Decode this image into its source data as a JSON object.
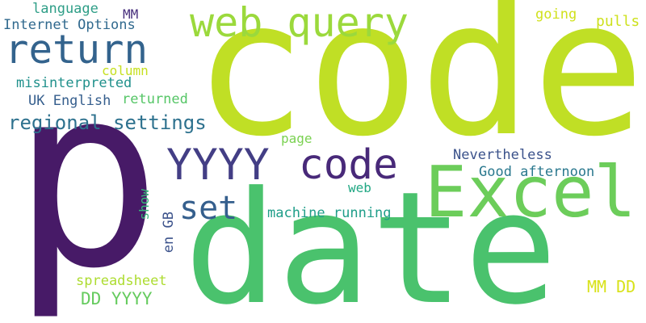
{
  "words": [
    {
      "text": "p",
      "color": "#471a67"
    },
    {
      "text": "code",
      "color": "#c0df25"
    },
    {
      "text": "date",
      "color": "#4ac26d"
    },
    {
      "text": "web query",
      "color": "#9bd93c"
    },
    {
      "text": "Excel",
      "color": "#6ccd5a"
    },
    {
      "text": "return",
      "color": "#33638d"
    },
    {
      "text": "YYYY",
      "color": "#433e85"
    },
    {
      "text": "code",
      "color": "#482979"
    },
    {
      "text": "set",
      "color": "#355f8d"
    },
    {
      "text": "regional settings",
      "color": "#2d718e"
    },
    {
      "text": "language",
      "color": "#2e9e87"
    },
    {
      "text": "MM",
      "color": "#472e7c"
    },
    {
      "text": "Internet Options",
      "color": "#30698e"
    },
    {
      "text": "column",
      "color": "#c6e021"
    },
    {
      "text": "misinterpreted",
      "color": "#21918c"
    },
    {
      "text": "UK English",
      "color": "#355e8d"
    },
    {
      "text": "returned",
      "color": "#56c667"
    },
    {
      "text": "going",
      "color": "#d0e11c"
    },
    {
      "text": "pulls",
      "color": "#cde11d"
    },
    {
      "text": "Nevertheless",
      "color": "#3b528b"
    },
    {
      "text": "Good afternoon",
      "color": "#2a788e"
    },
    {
      "text": "page",
      "color": "#7ad151"
    },
    {
      "text": "web",
      "color": "#22a884"
    },
    {
      "text": "machine running",
      "color": "#1f9e89"
    },
    {
      "text": "show",
      "color": "#35b779"
    },
    {
      "text": "en GB",
      "color": "#3b528b"
    },
    {
      "text": "spreadsheet",
      "color": "#addc30"
    },
    {
      "text": "DD YYYY",
      "color": "#65cb5e"
    },
    {
      "text": "MM DD",
      "color": "#d8e219"
    }
  ]
}
